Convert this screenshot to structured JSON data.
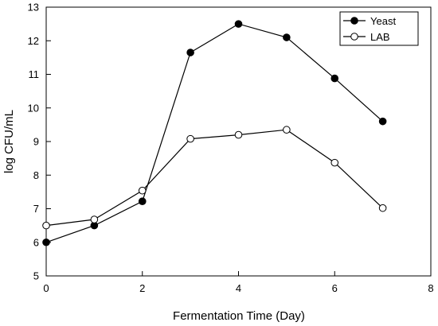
{
  "chart_data": {
    "type": "line",
    "xlabel": "Fermentation Time (Day)",
    "ylabel": "log CFU/mL",
    "xlim": [
      0,
      8
    ],
    "ylim": [
      5,
      13
    ],
    "xticks": [
      "0",
      "2",
      "4",
      "6",
      "8"
    ],
    "yticks": [
      "5",
      "6",
      "7",
      "8",
      "9",
      "10",
      "11",
      "12",
      "13"
    ],
    "grid": false,
    "legend_position": "top-right",
    "series": [
      {
        "name": "Yeast",
        "marker": "filled-circle",
        "color": "#000000",
        "x": [
          0,
          1,
          2,
          3,
          4,
          5,
          6,
          7
        ],
        "y": [
          6.0,
          6.5,
          7.22,
          11.65,
          12.5,
          12.1,
          10.88,
          9.6
        ]
      },
      {
        "name": "LAB",
        "marker": "open-circle",
        "color": "#000000",
        "x": [
          0,
          1,
          2,
          3,
          4,
          5,
          6,
          7
        ],
        "y": [
          6.5,
          6.68,
          7.54,
          9.08,
          9.2,
          9.35,
          8.37,
          7.02
        ]
      }
    ]
  }
}
